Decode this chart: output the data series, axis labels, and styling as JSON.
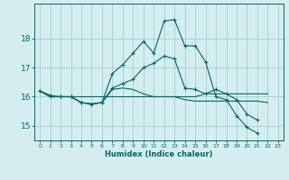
{
  "xlabel": "Humidex (Indice chaleur)",
  "bg_color": "#d4eef0",
  "grid_color": "#a8cccc",
  "line_color": "#006666",
  "x": [
    0,
    1,
    2,
    3,
    4,
    5,
    6,
    7,
    8,
    9,
    10,
    11,
    12,
    13,
    14,
    15,
    16,
    17,
    18,
    19,
    20,
    21,
    22,
    23
  ],
  "series": [
    {
      "y": [
        16.2,
        16.0,
        16.0,
        16.0,
        16.0,
        16.0,
        16.0,
        16.0,
        16.0,
        16.0,
        16.0,
        16.0,
        16.0,
        16.0,
        16.0,
        16.0,
        16.1,
        16.1,
        16.1,
        16.1,
        16.1,
        16.1,
        16.1,
        null
      ],
      "marker": false
    },
    {
      "y": [
        16.2,
        16.0,
        16.0,
        16.0,
        15.8,
        15.75,
        15.8,
        16.25,
        16.3,
        16.25,
        16.1,
        16.0,
        16.0,
        16.0,
        15.9,
        15.85,
        15.85,
        15.85,
        15.85,
        15.85,
        15.85,
        15.85,
        15.8,
        null
      ],
      "marker": false
    },
    {
      "y": [
        16.2,
        16.05,
        16.0,
        16.0,
        15.8,
        15.75,
        15.8,
        16.3,
        16.45,
        16.6,
        17.0,
        17.15,
        17.4,
        17.3,
        16.3,
        16.25,
        16.1,
        16.25,
        16.1,
        15.9,
        15.4,
        15.2,
        null,
        null
      ],
      "marker": true
    },
    {
      "y": [
        16.2,
        16.0,
        16.0,
        16.0,
        15.8,
        15.75,
        15.8,
        16.8,
        17.1,
        17.5,
        17.9,
        17.5,
        18.6,
        18.65,
        17.75,
        17.75,
        17.2,
        16.0,
        15.9,
        15.35,
        14.95,
        14.75,
        null,
        null
      ],
      "marker": true
    }
  ],
  "ylim": [
    14.5,
    19.2
  ],
  "yticks": [
    15,
    16,
    17,
    18
  ],
  "xlim": [
    -0.5,
    23.5
  ],
  "figsize": [
    3.2,
    2.0
  ],
  "dpi": 100
}
